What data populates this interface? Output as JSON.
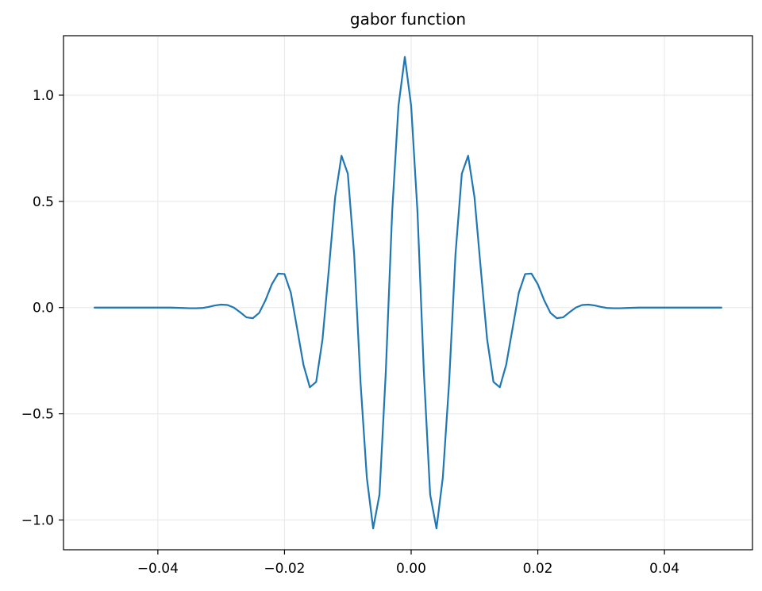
{
  "chart_data": {
    "type": "line",
    "title": "gabor function",
    "xlabel": "",
    "ylabel": "",
    "xlim": [
      -0.0549,
      0.0539
    ],
    "ylim": [
      -1.14,
      1.28
    ],
    "grid": true,
    "series_color": "#1f77b4",
    "grid_color": "#ebebeb",
    "x_ticks": [
      -0.04,
      -0.02,
      0.0,
      0.02,
      0.04
    ],
    "x_tick_labels": [
      "−0.04",
      "−0.02",
      "0.00",
      "0.02",
      "0.04"
    ],
    "y_ticks": [
      -1.0,
      -0.5,
      0.0,
      0.5,
      1.0
    ],
    "y_tick_labels": [
      "−1.0",
      "−0.5",
      "0.0",
      "0.5",
      "1.0"
    ],
    "series": [
      {
        "x": [
          -0.05,
          -0.049,
          -0.048,
          -0.047,
          -0.046,
          -0.045,
          -0.044,
          -0.043,
          -0.042,
          -0.041,
          -0.04,
          -0.039,
          -0.038,
          -0.037,
          -0.036,
          -0.035,
          -0.034,
          -0.033,
          -0.032,
          -0.031,
          -0.03,
          -0.029,
          -0.028,
          -0.027,
          -0.026,
          -0.025,
          -0.024,
          -0.023,
          -0.022,
          -0.021,
          -0.02,
          -0.019,
          -0.018,
          -0.017,
          -0.016,
          -0.015,
          -0.014,
          -0.013,
          -0.012,
          -0.011,
          -0.01,
          -0.009,
          -0.008,
          -0.007,
          -0.006,
          -0.005,
          -0.004,
          -0.003,
          -0.002,
          -0.001,
          0.0,
          0.001,
          0.002,
          0.003,
          0.004,
          0.005,
          0.006,
          0.007,
          0.008,
          0.009,
          0.01,
          0.011,
          0.012,
          0.013,
          0.014,
          0.015,
          0.016,
          0.017,
          0.018,
          0.019,
          0.02,
          0.021,
          0.022,
          0.023,
          0.024,
          0.025,
          0.026,
          0.027,
          0.028,
          0.029,
          0.03,
          0.031,
          0.032,
          0.033,
          0.034,
          0.035,
          0.036,
          0.037,
          0.038,
          0.039,
          0.04,
          0.041,
          0.042,
          0.043,
          0.044,
          0.045,
          0.046,
          0.047,
          0.048,
          0.049
        ],
        "y": [
          0.0,
          0.0,
          0.0,
          0.0,
          0.0,
          0.0,
          0.0,
          0.0,
          0.0,
          0.0,
          0.0,
          0.0,
          0.0,
          -0.001,
          -0.002,
          -0.003,
          -0.003,
          -0.002,
          0.003,
          0.01,
          0.014,
          0.012,
          0.0,
          -0.022,
          -0.046,
          -0.05,
          -0.025,
          0.035,
          0.11,
          0.16,
          0.158,
          0.07,
          -0.1,
          -0.27,
          -0.375,
          -0.35,
          -0.15,
          0.18,
          0.52,
          0.715,
          0.63,
          0.25,
          -0.35,
          -0.8,
          -1.04,
          -0.88,
          -0.3,
          0.45,
          0.95,
          1.18,
          0.95,
          0.45,
          -0.3,
          -0.88,
          -1.04,
          -0.8,
          -0.35,
          0.25,
          0.63,
          0.715,
          0.52,
          0.18,
          -0.15,
          -0.35,
          -0.375,
          -0.27,
          -0.1,
          0.07,
          0.158,
          0.16,
          0.11,
          0.035,
          -0.025,
          -0.05,
          -0.046,
          -0.022,
          0.0,
          0.012,
          0.014,
          0.01,
          0.003,
          -0.002,
          -0.003,
          -0.003,
          -0.002,
          -0.001,
          0.0,
          0.0,
          0.0,
          0.0,
          0.0,
          0.0,
          0.0,
          0.0,
          0.0,
          0.0,
          0.0,
          0.0,
          0.0,
          0.0
        ]
      }
    ]
  }
}
